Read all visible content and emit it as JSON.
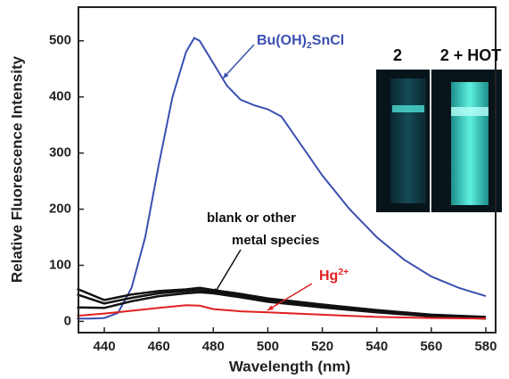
{
  "chart_data": {
    "type": "line",
    "x_label": "Wavelength (nm)",
    "y_label": "Relative Fluorescence Intensity",
    "xlim": [
      430.5,
      583.6
    ],
    "ylim": [
      -20,
      560
    ],
    "xticks": [
      440,
      460,
      480,
      500,
      520,
      540,
      560,
      580
    ],
    "yticks": [
      0,
      100,
      200,
      300,
      400,
      500
    ],
    "series": [
      {
        "color": "#3a4fb0",
        "x": [
          430,
          435,
          440,
          445,
          450,
          455,
          460,
          465,
          470,
          473,
          475,
          480,
          485,
          490,
          495,
          500,
          505,
          510,
          520,
          530,
          540,
          550,
          560,
          570,
          580
        ],
        "values": [
          5,
          5,
          6,
          15,
          60,
          150,
          280,
          400,
          480,
          505,
          500,
          460,
          420,
          395,
          385,
          378,
          365,
          330,
          260,
          200,
          150,
          110,
          80,
          60,
          45
        ]
      },
      {
        "color": "#111111",
        "x": [
          430,
          440,
          450,
          460,
          470,
          475,
          480,
          490,
          500,
          520,
          540,
          560,
          580
        ],
        "values": [
          58,
          38,
          48,
          54,
          57,
          60,
          56,
          49,
          41,
          30,
          20,
          12,
          8
        ]
      },
      {
        "color": "#111111",
        "x": [
          430,
          440,
          450,
          460,
          470,
          475,
          480,
          490,
          500,
          520,
          540,
          560,
          580
        ],
        "values": [
          48,
          32,
          42,
          50,
          54,
          56,
          53,
          46,
          38,
          28,
          18,
          10,
          6
        ]
      },
      {
        "color": "#111111",
        "x": [
          430,
          440,
          450,
          460,
          470,
          475,
          480,
          490,
          500,
          520,
          540,
          560,
          580
        ],
        "values": [
          25,
          24,
          36,
          45,
          50,
          52,
          50,
          43,
          35,
          25,
          16,
          9,
          5
        ]
      },
      {
        "color": "#e02020",
        "x": [
          430,
          440,
          450,
          460,
          470,
          475,
          480,
          490,
          500,
          520,
          540,
          560,
          580
        ],
        "values": [
          10,
          14,
          19,
          24,
          29,
          28,
          22,
          18,
          16,
          12,
          8,
          6,
          5
        ]
      }
    ],
    "annotations": [
      {
        "parts": [
          "Bu(OH)",
          "2",
          "SnCl"
        ],
        "color": "#3a4fb0"
      },
      {
        "parts": [
          "blank or other"
        ],
        "color": "#111111"
      },
      {
        "parts": [
          "metal species"
        ],
        "color": "#111111"
      },
      {
        "parts": [
          "Hg",
          "2+"
        ],
        "color": "#e02020"
      }
    ],
    "inset_labels": [
      "2",
      "2 + HOT"
    ]
  }
}
